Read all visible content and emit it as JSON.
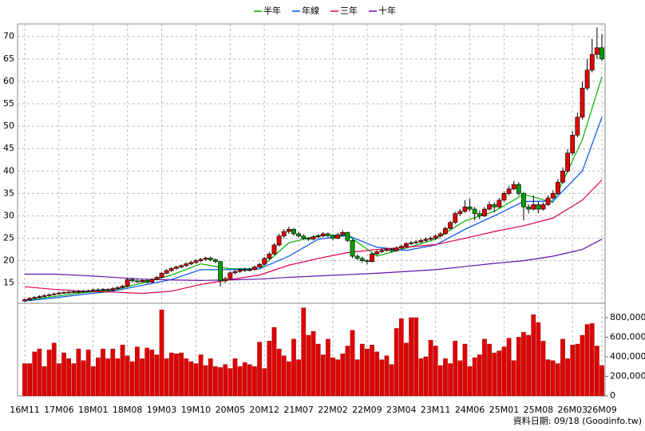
{
  "chart_data": {
    "type": "candlestick",
    "legend": [
      {
        "name": "半年",
        "color": "#00b000"
      },
      {
        "name": "年線",
        "color": "#0050f0"
      },
      {
        "name": "三年",
        "color": "#e0004a"
      },
      {
        "name": "十年",
        "color": "#6010b0"
      }
    ],
    "categories": [
      "16M11",
      null,
      null,
      null,
      null,
      null,
      null,
      "17M06",
      null,
      null,
      null,
      null,
      null,
      null,
      "18M01",
      null,
      null,
      null,
      null,
      null,
      null,
      "18M08",
      null,
      null,
      null,
      null,
      null,
      null,
      "19M03",
      null,
      null,
      null,
      null,
      null,
      null,
      "19M10",
      null,
      null,
      null,
      null,
      null,
      null,
      "20M05",
      null,
      null,
      null,
      null,
      null,
      null,
      "20M12",
      null,
      null,
      null,
      null,
      null,
      null,
      "21M07",
      null,
      null,
      null,
      null,
      null,
      null,
      "22M02",
      null,
      null,
      null,
      null,
      null,
      null,
      "22M09",
      null,
      null,
      null,
      null,
      null,
      null,
      "23M04",
      null,
      null,
      null,
      null,
      null,
      null,
      "23M11",
      null,
      null,
      null,
      null,
      null,
      null,
      "24M06",
      null,
      null,
      null,
      null,
      null,
      null,
      "25M01",
      null,
      null,
      null,
      null,
      null,
      null,
      "25M08",
      null,
      null,
      null,
      null,
      null,
      null,
      "26M03",
      null,
      null,
      null,
      null,
      null,
      "26M09"
    ],
    "ohlc": [
      [
        11.0,
        11.6,
        10.8,
        11.3
      ],
      [
        11.3,
        11.9,
        11.1,
        11.6
      ],
      [
        11.6,
        12.1,
        11.4,
        11.8
      ],
      [
        11.8,
        12.3,
        11.6,
        12.0
      ],
      [
        12.0,
        12.5,
        11.8,
        12.2
      ],
      [
        12.2,
        12.7,
        12.0,
        12.4
      ],
      [
        12.4,
        12.9,
        12.2,
        12.6
      ],
      [
        12.6,
        13.1,
        12.4,
        12.8
      ],
      [
        12.8,
        13.2,
        12.6,
        12.9
      ],
      [
        12.9,
        13.3,
        12.7,
        13.0
      ],
      [
        13.0,
        13.4,
        12.8,
        13.1
      ],
      [
        13.1,
        13.5,
        12.8,
        13.0
      ],
      [
        13.0,
        13.5,
        12.8,
        13.2
      ],
      [
        13.2,
        13.6,
        13.0,
        13.3
      ],
      [
        13.3,
        13.8,
        13.1,
        13.5
      ],
      [
        13.5,
        13.9,
        13.1,
        13.4
      ],
      [
        13.4,
        13.9,
        13.2,
        13.6
      ],
      [
        13.6,
        13.9,
        13.1,
        13.4
      ],
      [
        13.4,
        14.1,
        13.2,
        13.8
      ],
      [
        13.8,
        14.3,
        13.6,
        14.0
      ],
      [
        14.0,
        14.6,
        13.8,
        14.3
      ],
      [
        14.3,
        16.2,
        14.1,
        15.8
      ],
      [
        15.8,
        16.2,
        15.2,
        15.5
      ],
      [
        15.5,
        15.9,
        15.0,
        15.3
      ],
      [
        15.3,
        15.9,
        15.1,
        15.6
      ],
      [
        15.6,
        16.0,
        14.9,
        15.2
      ],
      [
        15.2,
        16.1,
        15.0,
        15.8
      ],
      [
        15.8,
        16.6,
        15.6,
        16.3
      ],
      [
        16.3,
        17.5,
        16.1,
        17.2
      ],
      [
        17.2,
        18.1,
        17.0,
        17.8
      ],
      [
        17.8,
        18.6,
        17.5,
        18.3
      ],
      [
        18.3,
        18.9,
        18.0,
        18.6
      ],
      [
        18.6,
        19.2,
        18.3,
        18.9
      ],
      [
        18.9,
        19.6,
        18.6,
        19.3
      ],
      [
        19.3,
        19.9,
        19.0,
        19.6
      ],
      [
        19.6,
        20.3,
        19.3,
        20.0
      ],
      [
        20.0,
        20.6,
        19.7,
        20.3
      ],
      [
        20.3,
        20.9,
        20.0,
        20.6
      ],
      [
        20.6,
        20.9,
        19.9,
        20.2
      ],
      [
        20.2,
        20.5,
        19.4,
        19.8
      ],
      [
        19.8,
        19.9,
        14.2,
        15.5
      ],
      [
        15.5,
        16.4,
        15.1,
        16.0
      ],
      [
        16.0,
        17.6,
        15.8,
        17.3
      ],
      [
        17.3,
        17.9,
        17.0,
        17.6
      ],
      [
        17.6,
        18.3,
        17.3,
        18.0
      ],
      [
        18.0,
        18.4,
        17.5,
        17.8
      ],
      [
        17.8,
        18.4,
        17.6,
        18.0
      ],
      [
        18.0,
        18.9,
        17.8,
        18.6
      ],
      [
        18.6,
        19.5,
        18.4,
        19.2
      ],
      [
        19.2,
        20.8,
        19.0,
        20.5
      ],
      [
        20.5,
        21.9,
        20.2,
        21.5
      ],
      [
        21.5,
        23.9,
        21.3,
        23.5
      ],
      [
        23.5,
        26.0,
        23.2,
        25.5
      ],
      [
        25.5,
        27.0,
        25.0,
        26.5
      ],
      [
        26.5,
        27.6,
        26.0,
        27.0
      ],
      [
        27.0,
        27.3,
        25.6,
        26.0
      ],
      [
        26.0,
        26.4,
        25.1,
        25.5
      ],
      [
        25.5,
        25.9,
        24.6,
        25.0
      ],
      [
        25.0,
        25.3,
        24.4,
        24.8
      ],
      [
        24.8,
        25.7,
        24.5,
        25.3
      ],
      [
        25.3,
        25.9,
        25.0,
        25.5
      ],
      [
        25.5,
        26.4,
        25.2,
        26.0
      ],
      [
        26.0,
        26.3,
        25.2,
        25.6
      ],
      [
        25.6,
        25.9,
        24.6,
        25.0
      ],
      [
        25.0,
        26.2,
        24.8,
        25.8
      ],
      [
        25.8,
        26.8,
        25.5,
        26.3
      ],
      [
        26.3,
        26.5,
        24.2,
        24.5
      ],
      [
        24.5,
        24.8,
        20.6,
        21.0
      ],
      [
        21.0,
        21.4,
        20.1,
        20.5
      ],
      [
        20.5,
        20.9,
        19.6,
        20.0
      ],
      [
        20.0,
        20.3,
        19.2,
        19.8
      ],
      [
        19.8,
        21.9,
        19.6,
        21.5
      ],
      [
        21.5,
        22.4,
        21.2,
        22.0
      ],
      [
        22.0,
        22.7,
        21.7,
        22.3
      ],
      [
        22.3,
        22.9,
        22.0,
        22.5
      ],
      [
        22.5,
        22.8,
        21.8,
        22.2
      ],
      [
        22.2,
        23.2,
        22.0,
        22.8
      ],
      [
        22.8,
        23.6,
        22.5,
        23.2
      ],
      [
        23.2,
        24.2,
        23.0,
        23.8
      ],
      [
        23.8,
        24.4,
        23.5,
        24.0
      ],
      [
        24.0,
        24.6,
        23.7,
        24.2
      ],
      [
        24.2,
        24.9,
        23.9,
        24.5
      ],
      [
        24.5,
        25.2,
        24.2,
        24.8
      ],
      [
        24.8,
        25.4,
        24.5,
        25.0
      ],
      [
        25.0,
        25.9,
        24.7,
        25.5
      ],
      [
        25.5,
        26.4,
        25.2,
        26.0
      ],
      [
        26.0,
        27.6,
        25.8,
        27.2
      ],
      [
        27.2,
        28.9,
        27.0,
        28.5
      ],
      [
        28.5,
        30.9,
        28.2,
        30.5
      ],
      [
        30.5,
        31.5,
        30.0,
        31.0
      ],
      [
        31.0,
        33.5,
        30.7,
        32.0
      ],
      [
        32.0,
        33.8,
        31.0,
        31.5
      ],
      [
        31.5,
        32.0,
        29.0,
        30.5
      ],
      [
        30.5,
        31.2,
        29.2,
        30.0
      ],
      [
        30.0,
        32.0,
        29.7,
        31.5
      ],
      [
        31.5,
        33.2,
        31.2,
        32.5
      ],
      [
        32.5,
        33.0,
        30.8,
        32.0
      ],
      [
        32.0,
        34.0,
        31.7,
        33.5
      ],
      [
        33.5,
        35.5,
        33.2,
        35.0
      ],
      [
        35.0,
        36.7,
        34.6,
        36.0
      ],
      [
        36.0,
        37.8,
        35.7,
        37.0
      ],
      [
        37.0,
        37.5,
        34.5,
        35.0
      ],
      [
        35.0,
        35.4,
        29.0,
        32.0
      ],
      [
        32.0,
        32.6,
        30.5,
        31.5
      ],
      [
        31.5,
        34.6,
        31.2,
        32.5
      ],
      [
        32.5,
        33.2,
        30.6,
        31.5
      ],
      [
        31.5,
        33.0,
        31.2,
        32.5
      ],
      [
        32.5,
        34.6,
        32.2,
        34.0
      ],
      [
        34.0,
        35.7,
        33.6,
        35.0
      ],
      [
        35.0,
        38.2,
        34.7,
        37.5
      ],
      [
        37.5,
        40.8,
        37.2,
        40.0
      ],
      [
        40.0,
        44.9,
        39.6,
        44.0
      ],
      [
        44.0,
        48.9,
        43.5,
        48.0
      ],
      [
        48.0,
        53.0,
        47.5,
        52.0
      ],
      [
        52.0,
        60.0,
        51.5,
        58.5
      ],
      [
        58.5,
        65.0,
        58.0,
        62.5
      ],
      [
        62.5,
        69.5,
        62.0,
        66.0
      ],
      [
        66.0,
        72.0,
        65.0,
        67.5
      ],
      [
        67.5,
        70.5,
        64.5,
        65.0
      ]
    ],
    "volume": [
      330000,
      330000,
      450000,
      480000,
      300000,
      470000,
      540000,
      330000,
      440000,
      380000,
      330000,
      480000,
      360000,
      470000,
      300000,
      390000,
      480000,
      380000,
      480000,
      380000,
      520000,
      410000,
      350000,
      500000,
      380000,
      490000,
      470000,
      420000,
      880000,
      380000,
      440000,
      430000,
      440000,
      380000,
      350000,
      330000,
      420000,
      310000,
      380000,
      300000,
      290000,
      320000,
      280000,
      380000,
      300000,
      340000,
      320000,
      300000,
      550000,
      280000,
      560000,
      700000,
      480000,
      410000,
      350000,
      580000,
      370000,
      900000,
      620000,
      660000,
      530000,
      420000,
      580000,
      390000,
      370000,
      430000,
      510000,
      670000,
      370000,
      530000,
      480000,
      520000,
      450000,
      370000,
      410000,
      320000,
      690000,
      790000,
      540000,
      800000,
      800000,
      380000,
      400000,
      570000,
      510000,
      310000,
      380000,
      330000,
      560000,
      360000,
      530000,
      300000,
      390000,
      420000,
      580000,
      530000,
      440000,
      460000,
      500000,
      590000,
      360000,
      600000,
      650000,
      620000,
      830000,
      750000,
      560000,
      370000,
      360000,
      330000,
      580000,
      380000,
      520000,
      530000,
      620000,
      730000,
      740000,
      510000,
      310000
    ],
    "series": [
      {
        "name": "半年",
        "color": "#00b000",
        "x": [
          0,
          6,
          12,
          18,
          24,
          30,
          36,
          42,
          48,
          54,
          60,
          66,
          72,
          78,
          84,
          90,
          96,
          102,
          108,
          114,
          118
        ],
        "values": [
          11.2,
          12.0,
          12.9,
          13.4,
          15.0,
          16.8,
          19.3,
          18.2,
          18.2,
          24.0,
          25.6,
          25.7,
          21.0,
          22.8,
          24.8,
          28.9,
          31.0,
          34.8,
          33.0,
          47.0,
          61.0
        ]
      },
      {
        "name": "年線",
        "color": "#0050f0",
        "x": [
          0,
          6,
          12,
          18,
          24,
          30,
          36,
          42,
          48,
          54,
          60,
          66,
          72,
          78,
          84,
          90,
          96,
          102,
          108,
          114,
          118
        ],
        "values": [
          11.0,
          11.7,
          12.5,
          13.2,
          14.5,
          15.8,
          18.0,
          18.0,
          18.2,
          21.0,
          24.8,
          25.6,
          23.0,
          22.3,
          23.5,
          27.0,
          30.0,
          33.2,
          33.3,
          40.0,
          52.0
        ]
      },
      {
        "name": "三年",
        "color": "#e0004a",
        "x": [
          0,
          6,
          12,
          18,
          24,
          30,
          36,
          42,
          48,
          54,
          60,
          66,
          72,
          78,
          84,
          90,
          96,
          102,
          108,
          114,
          118
        ],
        "values": [
          14.2,
          13.6,
          13.2,
          13.0,
          12.7,
          13.2,
          14.7,
          15.8,
          16.8,
          19.0,
          20.5,
          21.8,
          22.5,
          23.0,
          23.6,
          25.0,
          26.5,
          27.8,
          29.5,
          33.5,
          38.0
        ]
      },
      {
        "name": "十年",
        "color": "#6010b0",
        "x": [
          0,
          6,
          12,
          18,
          24,
          30,
          36,
          42,
          48,
          54,
          60,
          66,
          72,
          78,
          84,
          90,
          96,
          102,
          108,
          114,
          118
        ],
        "values": [
          17.0,
          17.0,
          16.7,
          16.3,
          15.9,
          15.7,
          15.6,
          15.7,
          15.9,
          16.3,
          16.6,
          16.9,
          17.2,
          17.6,
          18.0,
          18.7,
          19.4,
          20.0,
          21.0,
          22.5,
          24.8
        ]
      }
    ],
    "up_color": "#e00000",
    "down_color": "#00a000",
    "volume_color": "#e00000",
    "ylim": [
      10.5,
      72.8
    ],
    "yticks": [
      15,
      20,
      25,
      30,
      35,
      40,
      45,
      50,
      55,
      60,
      65,
      70
    ],
    "y2lim": [
      0,
      947000
    ],
    "y2ticks": [
      0,
      {
        "value": 200000,
        "label": "200,000"
      },
      {
        "value": 400000,
        "label": "400,000"
      },
      {
        "value": 600000,
        "label": "600,000"
      },
      {
        "value": 800000,
        "label": "800,000"
      }
    ],
    "grid": true,
    "source": "資料日期: 09/18 (Goodinfo.tw)"
  }
}
